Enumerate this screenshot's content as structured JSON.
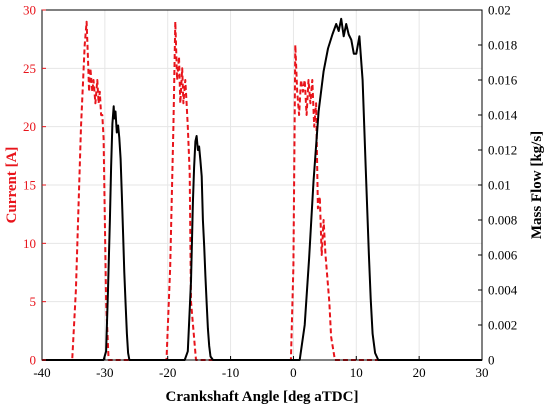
{
  "chart_data": {
    "type": "line",
    "xlabel": "Crankshaft Angle [deg aTDC]",
    "ylabel_left": "Current [A]",
    "ylabel_right": "Mass Flow [kg/s]",
    "xlim": [
      -40,
      30
    ],
    "ylim_left": [
      0,
      30
    ],
    "ylim_right": [
      0,
      0.02
    ],
    "x_ticks": [
      "-40",
      "-30",
      "-20",
      "-10",
      "0",
      "10",
      "20",
      "30"
    ],
    "y_left_ticks": [
      "0",
      "5",
      "10",
      "15",
      "20",
      "25",
      "30"
    ],
    "y_right_ticks": [
      "0",
      "0.002",
      "0.004",
      "0.006",
      "0.008",
      "0.01",
      "0.012",
      "0.014",
      "0.016",
      "0.018",
      "0.02"
    ],
    "grid": true,
    "colors": {
      "current": "#e8141b",
      "mass_flow": "#000000",
      "grid": "#e6e6e6"
    },
    "series": [
      {
        "axis": "left",
        "style": "dashed",
        "x": [
          -40,
          -35.2,
          -34.6,
          -33.8,
          -33.2,
          -32.9,
          -32.7,
          -32.5,
          -32.3,
          -32.0,
          -31.8,
          -31.5,
          -31.2,
          -31.0,
          -30.8,
          -30.6,
          -30.4,
          -30.2,
          -29.8,
          -29.4,
          -28.8,
          -20.8,
          -20.2,
          -19.6,
          -19.1,
          -18.8,
          -18.5,
          -18.2,
          -18.0,
          -17.7,
          -17.5,
          -17.2,
          -17.0,
          -16.8,
          -16.5,
          -16.3,
          -15.5,
          -15.0,
          -1.2,
          -0.4,
          0.0,
          0.3,
          0.6,
          0.9,
          1.2,
          1.5,
          1.8,
          2.1,
          2.4,
          2.7,
          3.0,
          3.3,
          3.6,
          3.9,
          4.2,
          4.5,
          4.8,
          5.1,
          5.4,
          5.7,
          6.0,
          6.3,
          6.6,
          7.2,
          30
        ],
        "y": [
          0,
          0,
          6,
          20,
          27,
          29,
          26,
          23,
          25,
          23,
          24,
          22,
          24,
          22,
          23,
          21,
          21,
          19,
          5,
          0,
          0,
          0,
          0,
          8,
          20,
          29,
          24,
          26,
          22,
          25,
          22,
          24,
          22,
          20,
          16,
          5,
          0,
          0,
          0,
          0,
          8,
          27,
          23,
          21,
          24,
          23,
          24,
          21,
          24,
          22,
          24,
          20,
          22,
          13,
          14,
          9,
          12,
          9,
          7,
          5,
          2,
          1,
          0,
          0,
          0
        ]
      },
      {
        "axis": "right",
        "style": "solid",
        "x": [
          -40,
          -30.2,
          -29.8,
          -29.5,
          -29.2,
          -29.0,
          -28.8,
          -28.6,
          -28.5,
          -28.3,
          -28.1,
          -27.9,
          -27.7,
          -27.5,
          -27.3,
          -27.1,
          -26.9,
          -26.7,
          -26.5,
          -26.3,
          -26.1,
          -25.5,
          -17.3,
          -16.8,
          -16.3,
          -16.0,
          -15.8,
          -15.6,
          -15.4,
          -15.2,
          -15.0,
          -14.8,
          -14.6,
          -14.4,
          -14.2,
          -14.0,
          -13.8,
          -13.6,
          -13.4,
          -13.2,
          -12.8,
          1.0,
          1.8,
          2.5,
          3.2,
          4.0,
          4.8,
          5.5,
          6.2,
          6.8,
          7.2,
          7.6,
          8.0,
          8.4,
          8.8,
          9.2,
          9.6,
          10.0,
          10.5,
          11.0,
          11.5,
          12.0,
          12.3,
          12.6,
          13.0,
          13.5,
          30
        ],
        "y": [
          0,
          0,
          0.0005,
          0.004,
          0.008,
          0.011,
          0.0135,
          0.0145,
          0.0138,
          0.0142,
          0.013,
          0.0134,
          0.0127,
          0.0115,
          0.0095,
          0.0072,
          0.005,
          0.0032,
          0.0015,
          0.0004,
          0,
          0,
          0,
          0.0005,
          0.0045,
          0.009,
          0.011,
          0.0125,
          0.0128,
          0.012,
          0.0122,
          0.0114,
          0.0105,
          0.008,
          0.0065,
          0.0048,
          0.0032,
          0.0018,
          0.0008,
          0.0002,
          0,
          0,
          0.002,
          0.0058,
          0.0102,
          0.0142,
          0.0165,
          0.0178,
          0.0186,
          0.0192,
          0.0188,
          0.0195,
          0.0185,
          0.0192,
          0.0186,
          0.0183,
          0.0175,
          0.0175,
          0.0185,
          0.016,
          0.011,
          0.006,
          0.0035,
          0.0015,
          0.0004,
          0,
          0
        ]
      }
    ]
  }
}
